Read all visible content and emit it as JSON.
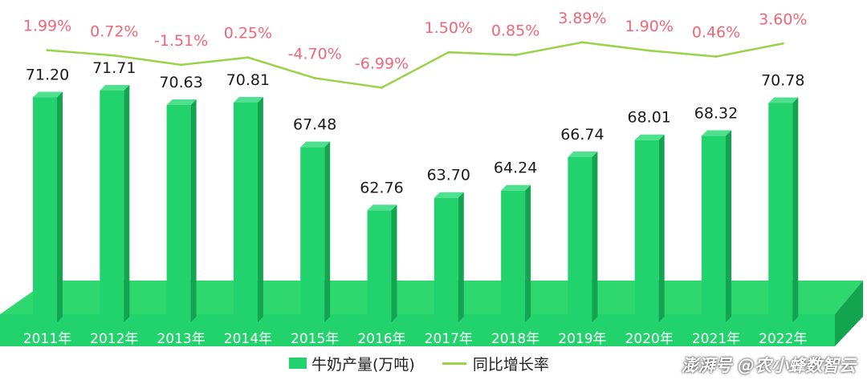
{
  "chart_data": {
    "type": "bar",
    "categories": [
      "2011年",
      "2012年",
      "2013年",
      "2014年",
      "2015年",
      "2016年",
      "2017年",
      "2018年",
      "2019年",
      "2020年",
      "2021年",
      "2022年"
    ],
    "series": [
      {
        "name": "牛奶产量(万吨)",
        "type": "bar",
        "values": [
          71.2,
          71.71,
          70.63,
          70.81,
          67.48,
          62.76,
          63.7,
          64.24,
          66.74,
          68.01,
          68.32,
          70.78
        ],
        "labels": [
          "71.20",
          "71.71",
          "70.63",
          "70.81",
          "67.48",
          "62.76",
          "63.70",
          "64.24",
          "66.74",
          "68.01",
          "68.32",
          "70.78"
        ]
      },
      {
        "name": "同比增长率",
        "type": "line",
        "values": [
          1.99,
          0.72,
          -1.51,
          0.25,
          -4.7,
          -6.99,
          1.5,
          0.85,
          3.89,
          1.9,
          0.46,
          3.6
        ],
        "labels": [
          "1.99%",
          "0.72%",
          "-1.51%",
          "0.25%",
          "-4.70%",
          "-6.99%",
          "1.50%",
          "0.85%",
          "3.89%",
          "1.90%",
          "0.46%",
          "3.60%"
        ]
      }
    ],
    "legend": "bottom",
    "grid": false,
    "colors": {
      "bar": "#22d36d",
      "bar_side": "#13a450",
      "bar_top": "#4fe08f",
      "floor": "#2ed86f",
      "line": "#9bd24a",
      "growth_label": "#f0657a",
      "value_label": "#1a1a1a",
      "axis_text": "#ffffff"
    }
  },
  "legend": {
    "bar_label": "牛奶产量(万吨)",
    "line_label": "同比增长率"
  },
  "watermark": "澎湃号 @农小蜂数智云"
}
